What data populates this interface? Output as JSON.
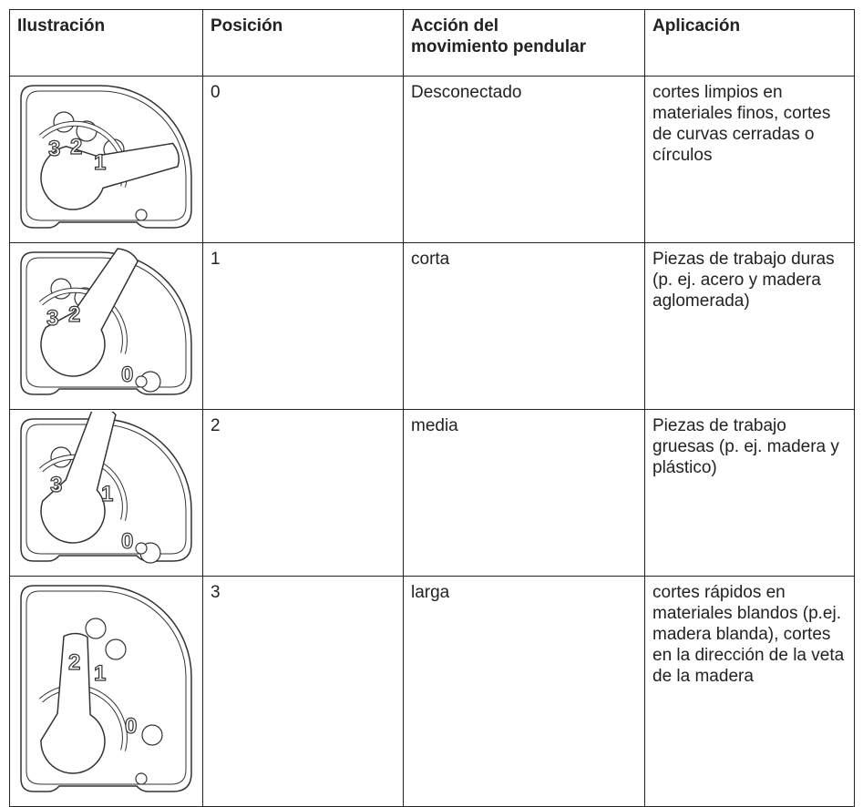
{
  "table": {
    "header": [
      "Ilustración",
      "Posición",
      "Acción del\nmovimiento pendular",
      "Aplicación"
    ],
    "rows": [
      {
        "dial_labels": [
          "3",
          "2",
          "1"
        ],
        "position": "0",
        "action": "Desconectado",
        "application": "cortes limpios en materiales finos, cortes de curvas cerradas o círculos"
      },
      {
        "dial_labels": [
          "3",
          "2",
          "0"
        ],
        "position": "1",
        "action": "corta",
        "application": "Piezas de trabajo duras (p. ej. acero y madera aglomerada)"
      },
      {
        "dial_labels": [
          "3",
          "1",
          "0"
        ],
        "position": "2",
        "action": "media",
        "application": "Piezas de trabajo gruesas (p. ej. madera y plástico)"
      },
      {
        "dial_labels": [
          "2",
          "1",
          "0"
        ],
        "position": "3",
        "action": "larga",
        "application": "cortes rápidos en materiales blandos (p.ej. madera blanda), cortes en la dirección de la veta de la madera"
      }
    ]
  }
}
